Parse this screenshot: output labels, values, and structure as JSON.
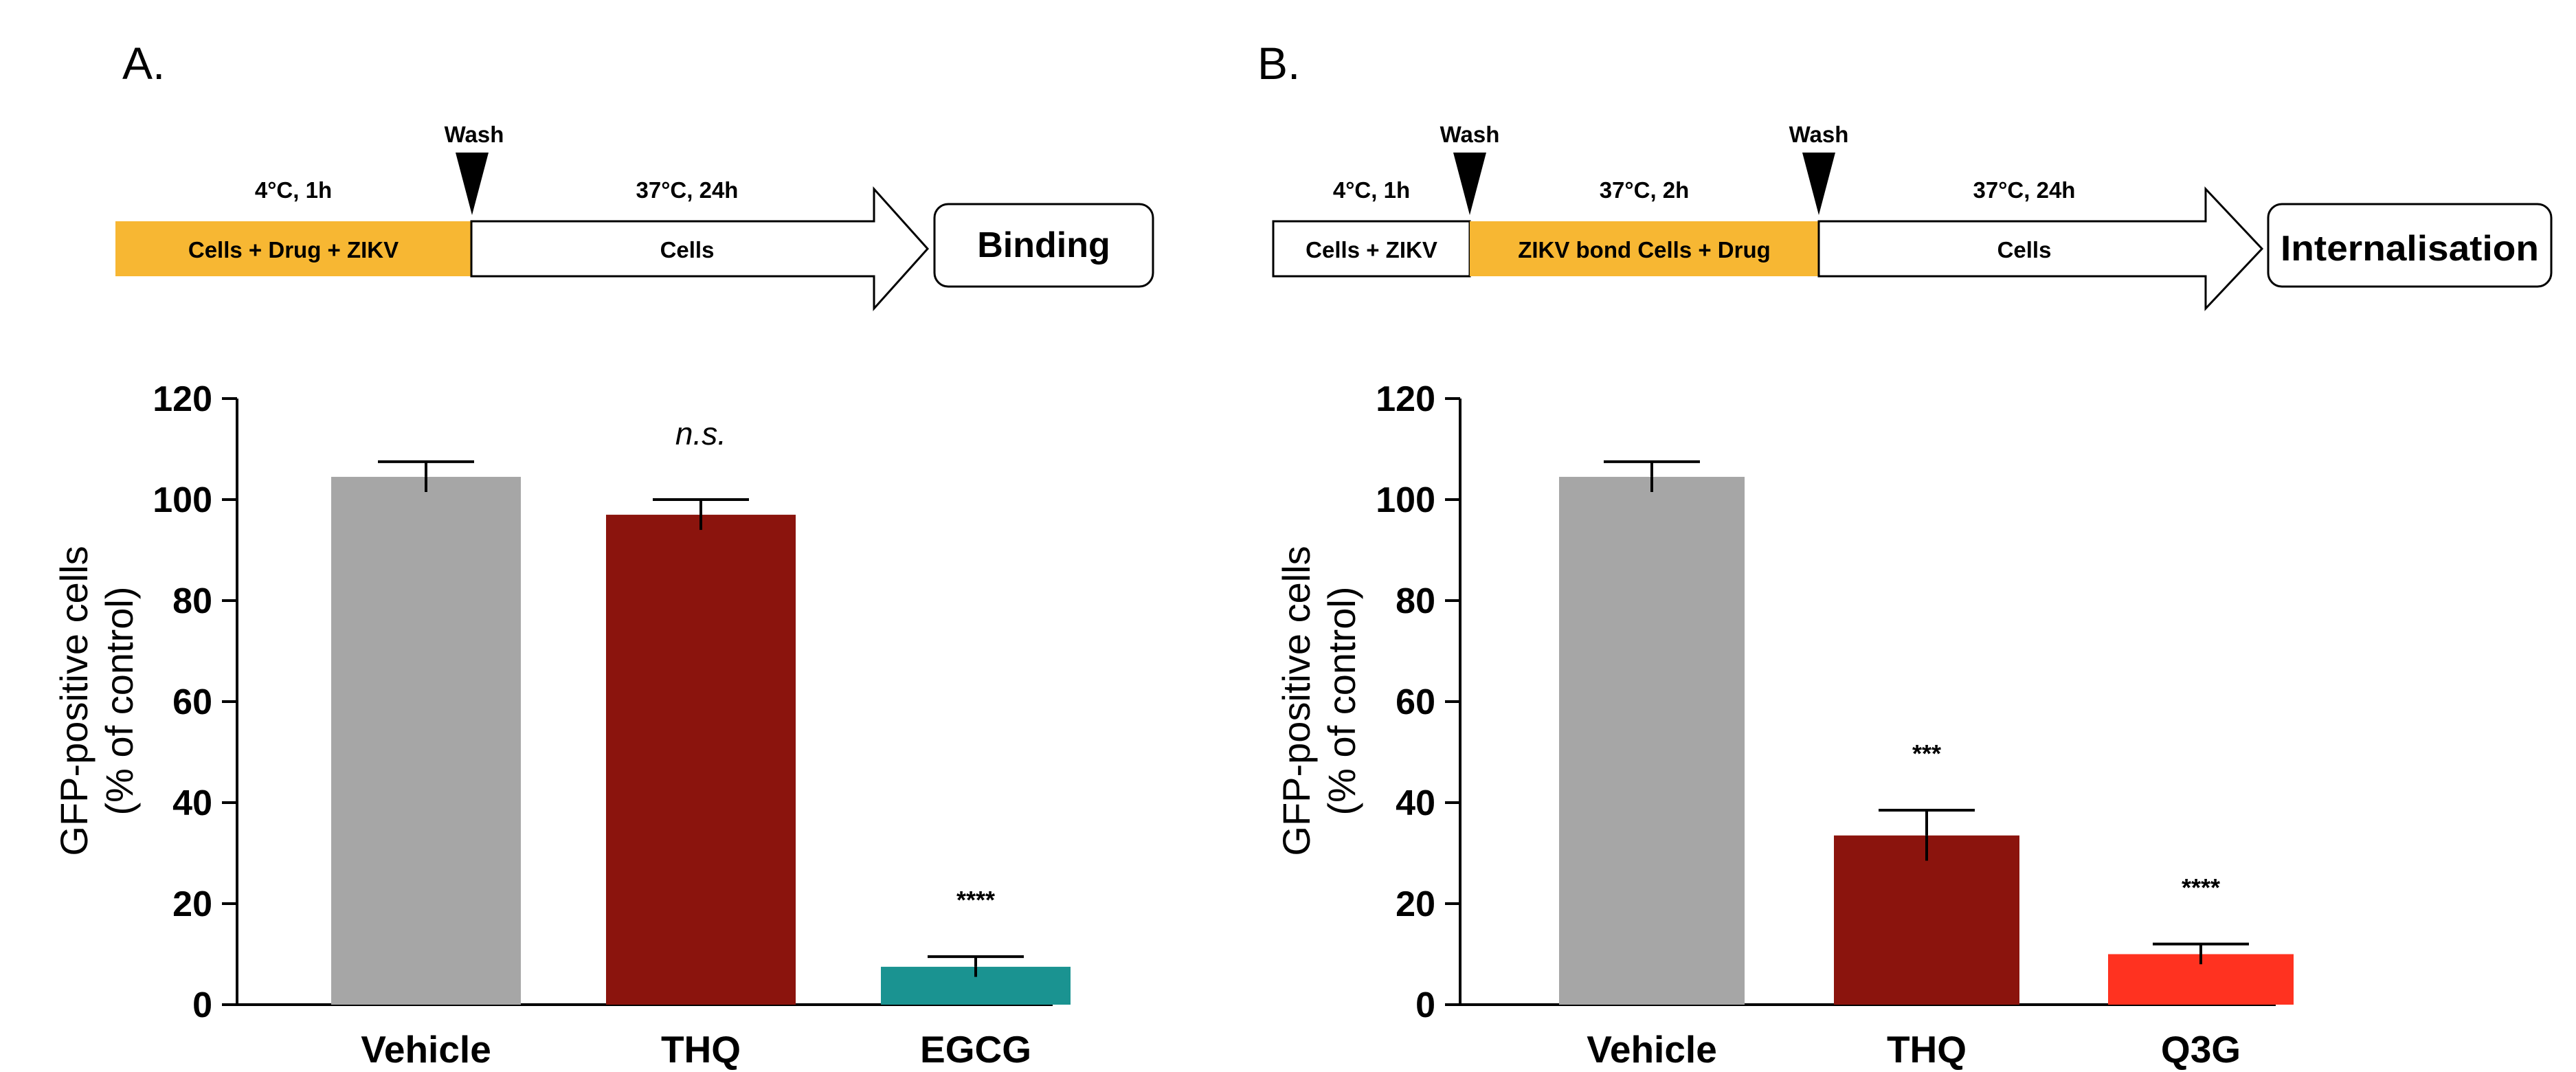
{
  "panels": [
    {
      "label": "A.",
      "schematic": {
        "first_box_label": "Cells + Drug + ZIKV",
        "first_top_label": "4°C, 1h",
        "wash_labels": [
          "Wash"
        ],
        "second_box_label": "Cells",
        "second_top_label": "37°C, 24h",
        "end_label": "Binding",
        "highlight_color": "#f7b733"
      }
    },
    {
      "label": "B.",
      "schematic": {
        "first_box_label": "Cells + ZIKV",
        "first_top_label": "4°C, 1h",
        "mid_box_label": "ZIKV bond Cells + Drug",
        "mid_top_label": "37°C, 2h",
        "wash_labels": [
          "Wash",
          "Wash"
        ],
        "second_box_label": "Cells",
        "second_top_label": "37°C, 24h",
        "end_label": "Internalisation",
        "highlight_color": "#f7b733"
      }
    }
  ],
  "chart_data": [
    {
      "type": "bar",
      "panel": "A.",
      "categories": [
        "Vehicle",
        "THQ",
        "EGCG"
      ],
      "values": [
        104.5,
        97,
        7.5
      ],
      "errors": [
        3,
        3,
        2
      ],
      "annotations": [
        "",
        "n.s.",
        "****"
      ],
      "colors": [
        "#a6a6a6",
        "#8b140d",
        "#1a9391"
      ],
      "ylabel_line1": "GFP-positive cells",
      "ylabel_line2": "(% of control)",
      "ylim": [
        0,
        120
      ],
      "yticks": [
        "0",
        "20",
        "40",
        "60",
        "80",
        "100",
        "120"
      ]
    },
    {
      "type": "bar",
      "panel": "B.",
      "categories": [
        "Vehicle",
        "THQ",
        "Q3G"
      ],
      "values": [
        104.5,
        33.5,
        10
      ],
      "errors": [
        3,
        5,
        2
      ],
      "annotations": [
        "",
        "***",
        "****"
      ],
      "colors": [
        "#a6a6a6",
        "#8b140d",
        "#ff3220"
      ],
      "ylabel_line1": "GFP-positive cells",
      "ylabel_line2": "(% of control)",
      "ylim": [
        0,
        120
      ],
      "yticks": [
        "0",
        "20",
        "40",
        "60",
        "80",
        "100",
        "120"
      ]
    }
  ]
}
